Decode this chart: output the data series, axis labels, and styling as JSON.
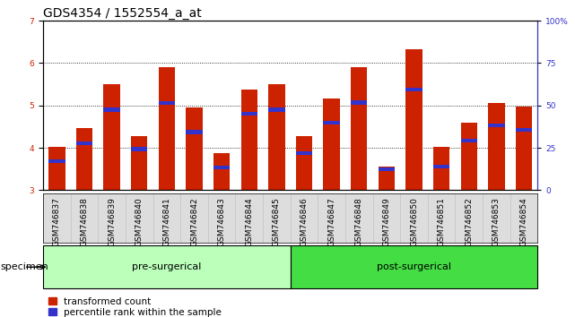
{
  "title": "GDS4354 / 1552554_a_at",
  "samples": [
    "GSM746837",
    "GSM746838",
    "GSM746839",
    "GSM746840",
    "GSM746841",
    "GSM746842",
    "GSM746843",
    "GSM746844",
    "GSM746845",
    "GSM746846",
    "GSM746847",
    "GSM746848",
    "GSM746849",
    "GSM746850",
    "GSM746851",
    "GSM746852",
    "GSM746853",
    "GSM746854"
  ],
  "bar_values": [
    4.03,
    4.47,
    5.5,
    4.27,
    5.9,
    4.95,
    3.87,
    5.37,
    5.5,
    4.27,
    5.17,
    5.9,
    3.55,
    6.33,
    4.03,
    4.6,
    5.05,
    4.97
  ],
  "percentile_values": [
    3.68,
    4.1,
    4.9,
    3.97,
    5.05,
    4.37,
    3.53,
    4.8,
    4.9,
    3.87,
    4.6,
    5.07,
    3.5,
    5.37,
    3.55,
    4.17,
    4.53,
    4.43
  ],
  "pre_surgical_count": 9,
  "post_surgical_count": 9,
  "ylim_left": [
    3,
    7
  ],
  "ylim_right": [
    0,
    100
  ],
  "yticks_left": [
    3,
    4,
    5,
    6,
    7
  ],
  "yticks_right": [
    0,
    25,
    50,
    75,
    100
  ],
  "bar_color": "#cc2200",
  "percentile_color": "#3333cc",
  "pre_surgical_color": "#bbffbb",
  "post_surgical_color": "#44dd44",
  "bar_width": 0.6,
  "legend_red_label": "transformed count",
  "legend_blue_label": "percentile rank within the sample",
  "specimen_label": "specimen",
  "pre_label": "pre-surgerical",
  "post_label": "post-surgerical",
  "background_color": "#ffffff",
  "plot_bg_color": "#ffffff",
  "tick_label_area_color": "#dddddd",
  "tick_label_color_left": "#cc2200",
  "tick_label_color_right": "#3333cc",
  "grid_color": "#000000",
  "title_fontsize": 10,
  "tick_fontsize": 6.5,
  "label_fontsize": 8,
  "group_label_fontsize": 8
}
